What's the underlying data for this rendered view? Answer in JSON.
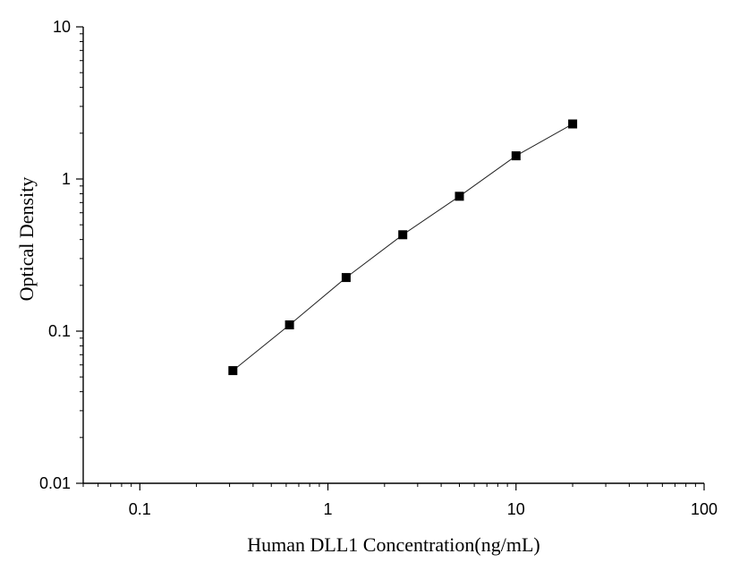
{
  "chart_data": {
    "type": "scatter",
    "title": "",
    "xlabel": "Human DLL1 Concentration(ng/mL)",
    "ylabel": "Optical Density",
    "xscale": "log",
    "yscale": "log",
    "xlim": [
      0.05,
      100
    ],
    "ylim": [
      0.01,
      10
    ],
    "x_ticks": [
      "0.1",
      "1",
      "10",
      "100"
    ],
    "y_ticks": [
      "0.01",
      "0.1",
      "1",
      "10"
    ],
    "grid": false,
    "legend": "none",
    "marker_color": "#000000",
    "line_color": "#222222",
    "series": [
      {
        "x": [
          0.3125,
          0.625,
          1.25,
          2.5,
          5,
          10,
          20
        ],
        "y": [
          0.055,
          0.11,
          0.225,
          0.43,
          0.77,
          1.42,
          2.3
        ]
      }
    ]
  }
}
